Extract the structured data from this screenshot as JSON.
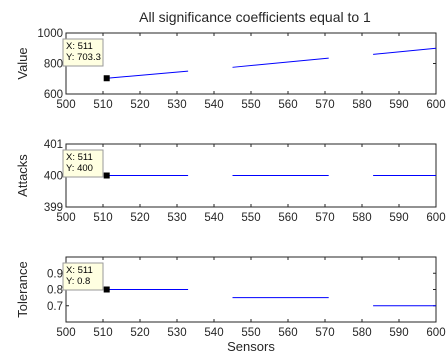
{
  "title": "All significance coefficients equal to 1",
  "chart_data": [
    {
      "type": "line",
      "title": "All significance coefficients equal to 1",
      "ylabel": "Value",
      "xlabel": "",
      "xlim": [
        500,
        600
      ],
      "ylim": [
        600,
        1000
      ],
      "xticks": [
        "500",
        "510",
        "520",
        "530",
        "540",
        "550",
        "560",
        "570",
        "580",
        "590",
        "600"
      ],
      "yticks": [
        "600",
        "800",
        "1000"
      ],
      "grid": false,
      "color": "#0000ff",
      "segments": [
        {
          "x": [
            511,
            533
          ],
          "y": [
            703.3,
            750
          ]
        },
        {
          "x": [
            545,
            571
          ],
          "y": [
            775,
            835
          ]
        },
        {
          "x": [
            583,
            600
          ],
          "y": [
            860,
            900
          ]
        }
      ],
      "marker": {
        "x": 511,
        "y": 703.3
      },
      "datatip": [
        "X: 511",
        "Y: 703.3"
      ]
    },
    {
      "type": "line",
      "title": "",
      "ylabel": "Attacks",
      "xlabel": "",
      "xlim": [
        500,
        600
      ],
      "ylim": [
        399,
        401
      ],
      "xticks": [
        "500",
        "510",
        "520",
        "530",
        "540",
        "550",
        "560",
        "570",
        "580",
        "590",
        "600"
      ],
      "yticks": [
        "399",
        "400",
        "401"
      ],
      "grid": false,
      "color": "#0000ff",
      "segments": [
        {
          "x": [
            511,
            533
          ],
          "y": [
            400,
            400
          ]
        },
        {
          "x": [
            545,
            571
          ],
          "y": [
            400,
            400
          ]
        },
        {
          "x": [
            583,
            600
          ],
          "y": [
            400,
            400
          ]
        }
      ],
      "marker": {
        "x": 511,
        "y": 400
      },
      "datatip": [
        "X: 511",
        "Y: 400"
      ]
    },
    {
      "type": "line",
      "title": "",
      "ylabel": "Tolerance",
      "xlabel": "Sensors",
      "xlim": [
        500,
        600
      ],
      "ylim": [
        0.6,
        1.0
      ],
      "xticks": [
        "500",
        "510",
        "520",
        "530",
        "540",
        "550",
        "560",
        "570",
        "580",
        "590",
        "600"
      ],
      "yticks": [
        "0.7",
        "0.8",
        "0.9"
      ],
      "ytick_values": [
        0.7,
        0.8,
        0.9
      ],
      "grid": false,
      "color": "#0000ff",
      "segments": [
        {
          "x": [
            511,
            533
          ],
          "y": [
            0.8,
            0.8
          ]
        },
        {
          "x": [
            545,
            571
          ],
          "y": [
            0.75,
            0.75
          ]
        },
        {
          "x": [
            583,
            600
          ],
          "y": [
            0.7,
            0.7
          ]
        }
      ],
      "marker": {
        "x": 511,
        "y": 0.8
      },
      "datatip": [
        "X: 511",
        "Y: 0.8"
      ]
    }
  ]
}
